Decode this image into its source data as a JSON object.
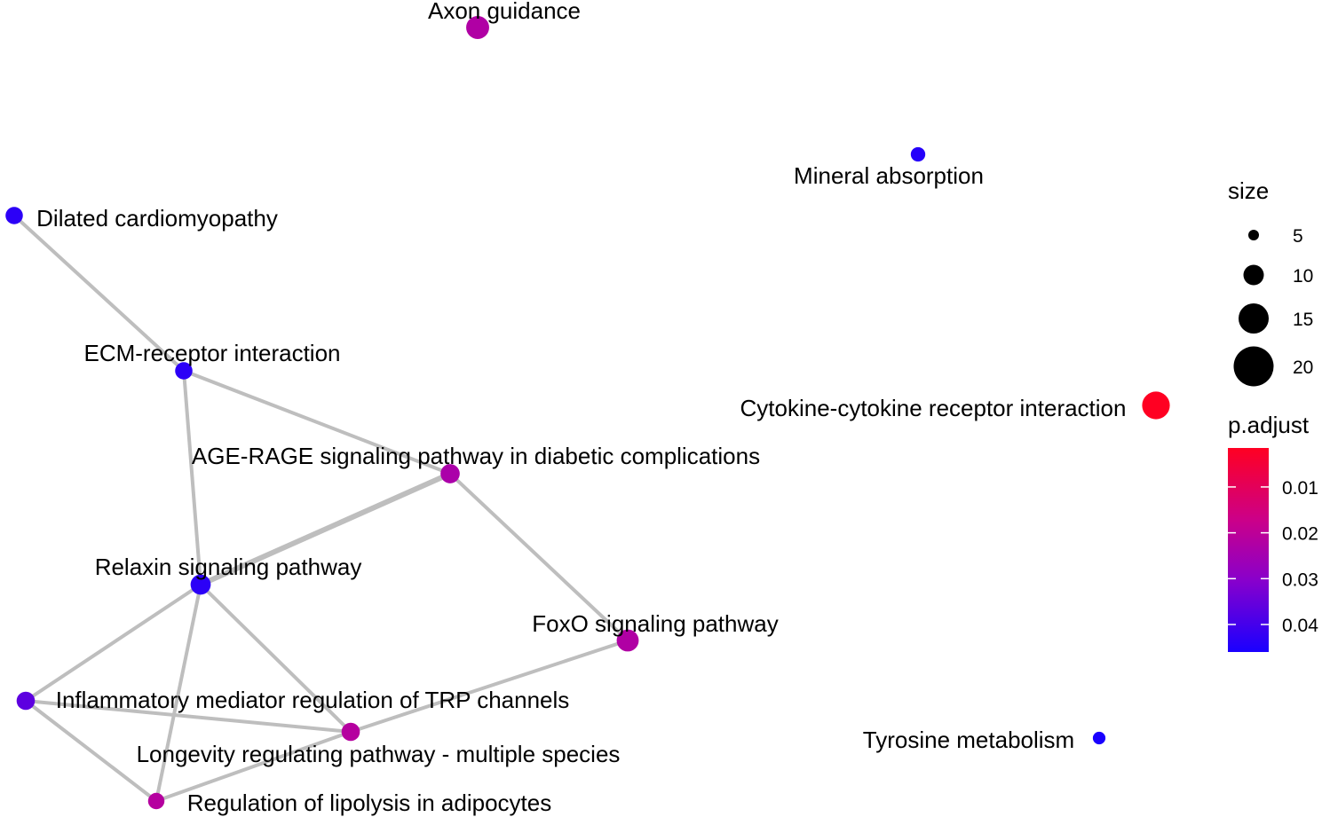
{
  "network": {
    "edge_color": "#bebebe",
    "nodes": [
      {
        "id": "axon",
        "label": "Axon guidance",
        "p_adjust": 0.0225,
        "size": 15
      },
      {
        "id": "mineral",
        "label": "Mineral absorption",
        "p_adjust": 0.0445,
        "size": 6
      },
      {
        "id": "dilated",
        "label": "Dilated cardiomyopathy",
        "p_adjust": 0.0435,
        "size": 9
      },
      {
        "id": "ecm",
        "label": "ECM-receptor interaction",
        "p_adjust": 0.0435,
        "size": 9
      },
      {
        "id": "cytokine",
        "label": "Cytokine-cytokine receptor interaction",
        "p_adjust": 0.0015,
        "size": 20
      },
      {
        "id": "age",
        "label": "AGE-RAGE signaling pathway in diabetic complications",
        "p_adjust": 0.0235,
        "size": 11
      },
      {
        "id": "relaxin",
        "label": "Relaxin signaling pathway",
        "p_adjust": 0.0435,
        "size": 12
      },
      {
        "id": "foxo",
        "label": "FoxO signaling pathway",
        "p_adjust": 0.0225,
        "size": 14
      },
      {
        "id": "inflammatory",
        "label": "Inflammatory mediator regulation of TRP channels",
        "p_adjust": 0.0365,
        "size": 10
      },
      {
        "id": "longevity",
        "label": "Longevity regulating pathway - multiple species",
        "p_adjust": 0.0215,
        "size": 10
      },
      {
        "id": "tyrosine",
        "label": "Tyrosine metabolism",
        "p_adjust": 0.046,
        "size": 4
      },
      {
        "id": "lipolysis",
        "label": "Regulation of lipolysis in adipocytes",
        "p_adjust": 0.0215,
        "size": 8
      }
    ],
    "edges": [
      {
        "source": "dilated",
        "target": "ecm"
      },
      {
        "source": "ecm",
        "target": "age"
      },
      {
        "source": "ecm",
        "target": "relaxin"
      },
      {
        "source": "age",
        "target": "relaxin"
      },
      {
        "source": "age",
        "target": "foxo"
      },
      {
        "source": "relaxin",
        "target": "inflammatory"
      },
      {
        "source": "relaxin",
        "target": "longevity"
      },
      {
        "source": "relaxin",
        "target": "lipolysis"
      },
      {
        "source": "foxo",
        "target": "longevity"
      },
      {
        "source": "inflammatory",
        "target": "longevity"
      },
      {
        "source": "inflammatory",
        "target": "lipolysis"
      },
      {
        "source": "longevity",
        "target": "lipolysis"
      }
    ]
  },
  "legend": {
    "size": {
      "title": "size",
      "entries": [
        {
          "label": "5",
          "value": 5
        },
        {
          "label": "10",
          "value": 10
        },
        {
          "label": "15",
          "value": 15
        },
        {
          "label": "20",
          "value": 20
        }
      ]
    },
    "color": {
      "title": "p.adjust",
      "low_color": "#ff0000",
      "high_color": "#0000ff",
      "min": 0.0015,
      "max": 0.046,
      "ticks": [
        {
          "label": "0.01",
          "value": 0.01
        },
        {
          "label": "0.02",
          "value": 0.02
        },
        {
          "label": "0.03",
          "value": 0.03
        },
        {
          "label": "0.04",
          "value": 0.04
        }
      ]
    }
  }
}
